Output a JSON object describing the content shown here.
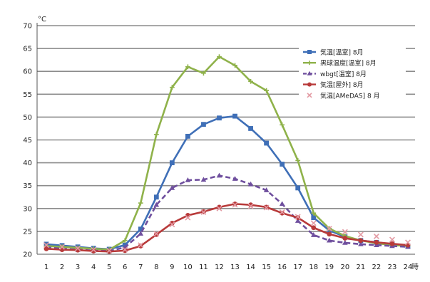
{
  "chart_data": {
    "type": "line",
    "title": "",
    "xlabel": "",
    "ylabel": "",
    "y_unit": "°C",
    "x_unit": "時",
    "ylim": [
      20,
      70
    ],
    "yticks": [
      20,
      25,
      30,
      35,
      40,
      45,
      50,
      55,
      60,
      65,
      70
    ],
    "x": [
      1,
      2,
      3,
      4,
      5,
      6,
      7,
      8,
      9,
      10,
      11,
      12,
      13,
      14,
      15,
      16,
      17,
      18,
      19,
      20,
      21,
      22,
      23,
      24
    ],
    "x_tick_labels": [
      "1",
      "2",
      "3",
      "4",
      "5",
      "6",
      "7",
      "8",
      "9",
      "10",
      "11",
      "12",
      "13",
      "14",
      "15",
      "16",
      "17",
      "18",
      "19",
      "20",
      "21",
      "22",
      "23",
      "24"
    ],
    "grid": true,
    "legend_position": "top-right",
    "series": [
      {
        "name": "気温[温室] 8月",
        "color": "#3f6fb7",
        "marker": "square",
        "dashed": false,
        "values": [
          22.2,
          21.9,
          21.6,
          21.3,
          21.1,
          22.0,
          25.5,
          32.5,
          40.0,
          45.8,
          48.4,
          49.8,
          50.2,
          47.5,
          44.3,
          39.7,
          34.5,
          28.0,
          25.2,
          23.8,
          23.0,
          22.6,
          22.2,
          21.8
        ]
      },
      {
        "name": "黒球温度[温室] 8月",
        "color": "#8fb24a",
        "marker": "plus",
        "dashed": false,
        "values": [
          21.8,
          21.6,
          21.4,
          21.2,
          21.0,
          23.0,
          31.2,
          46.2,
          56.5,
          61.0,
          59.6,
          63.2,
          61.3,
          57.8,
          55.8,
          48.3,
          40.5,
          29.0,
          25.6,
          24.0,
          23.0,
          22.4,
          22.0,
          21.8
        ]
      },
      {
        "name": "wbgt[温室] 8月",
        "color": "#6f4f9e",
        "marker": "triangle",
        "dashed": true,
        "values": [
          21.5,
          21.2,
          21.0,
          20.8,
          20.7,
          21.5,
          24.5,
          30.8,
          34.5,
          36.2,
          36.3,
          37.2,
          36.5,
          35.3,
          34.0,
          31.0,
          27.3,
          24.2,
          23.0,
          22.5,
          22.2,
          22.0,
          21.8,
          21.6
        ]
      },
      {
        "name": "気温[屋外] 8月",
        "color": "#b83a3a",
        "marker": "circle",
        "dashed": false,
        "values": [
          21.2,
          21.0,
          20.9,
          20.7,
          20.6,
          20.8,
          21.8,
          24.3,
          26.8,
          28.5,
          29.3,
          30.3,
          31.0,
          30.8,
          30.3,
          29.0,
          28.0,
          25.8,
          24.4,
          23.5,
          23.0,
          22.6,
          22.3,
          22.0
        ]
      },
      {
        "name": "気温[AMeDAS] 8 月",
        "color": "#e39aa3",
        "marker": "x",
        "dashed": false,
        "line": false,
        "values": [
          22.0,
          21.6,
          21.3,
          21.0,
          20.8,
          21.0,
          22.0,
          24.5,
          26.5,
          28.0,
          29.2,
          30.0,
          30.8,
          30.5,
          30.2,
          29.2,
          28.2,
          26.8,
          25.6,
          24.9,
          24.3,
          23.9,
          23.2,
          22.6
        ]
      }
    ]
  }
}
